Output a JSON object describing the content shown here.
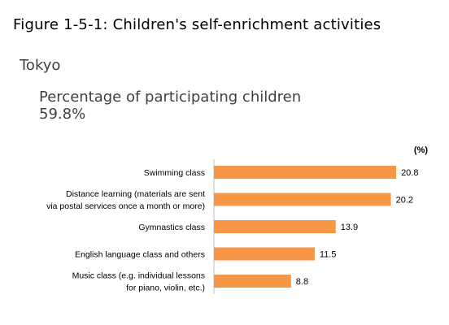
{
  "figure_title": "Figure 1-5-1: Children's self-enrichment activities",
  "region": "Tokyo",
  "participation_label": "Percentage of participating children",
  "participation_value": "59.8%",
  "colors": {
    "bar": "#F79646",
    "axis": "#BFBFBF",
    "text": "#000000"
  },
  "chart_data": {
    "type": "bar",
    "orientation": "horizontal",
    "unit_label": "(%)",
    "categories": [
      [
        "Swimming class"
      ],
      [
        "Distance learning (materials are sent",
        "via postal services once a month  or more)"
      ],
      [
        "Gymnastics class"
      ],
      [
        "English language class and others"
      ],
      [
        "Music class (e.g. individual lessons",
        "for piano, violin, etc.)"
      ]
    ],
    "values": [
      20.8,
      20.2,
      13.9,
      11.5,
      8.8
    ],
    "xlim": [
      0,
      22
    ]
  }
}
